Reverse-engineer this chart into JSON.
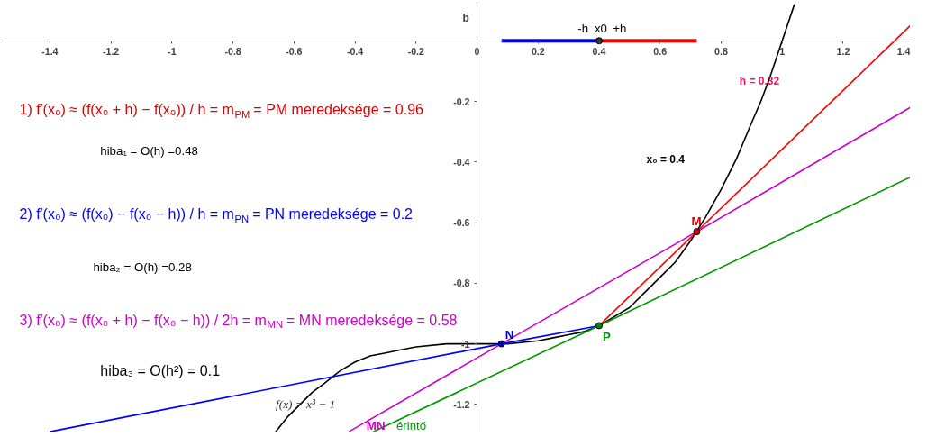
{
  "chart_data": {
    "type": "line",
    "ylabel": "b",
    "xlim": [
      -1.562,
      1.42
    ],
    "ylim": [
      -1.294,
      0.133
    ],
    "xticks": [
      -1.4,
      -1.2,
      -1,
      -0.8,
      -0.6,
      -0.4,
      -0.2,
      0,
      0.2,
      0.4,
      0.6,
      0.8,
      1,
      1.2,
      1.4
    ],
    "yticks": [
      -1.2,
      -1,
      -0.8,
      -0.6,
      -0.4,
      -0.2
    ],
    "grid": false,
    "line_style": "solid",
    "series": [
      {
        "color": "#000000",
        "x": [
          -0.66,
          -0.62,
          -0.58,
          -0.54,
          -0.5,
          -0.45,
          -0.4,
          -0.35,
          -0.3,
          -0.25,
          -0.2,
          -0.1,
          0,
          0.1,
          0.2,
          0.25,
          0.3,
          0.35,
          0.4,
          0.45,
          0.5,
          0.55,
          0.6,
          0.65,
          0.7,
          0.75,
          0.8,
          0.85,
          0.9,
          0.93,
          0.96,
          1.0,
          1.04
        ],
        "values": [
          -1.29,
          -1.24,
          -1.2,
          -1.16,
          -1.13,
          -1.09,
          -1.06,
          -1.04,
          -1.03,
          -1.02,
          -1.01,
          -1.0,
          -1,
          -1.0,
          -0.99,
          -0.98,
          -0.97,
          -0.96,
          -0.94,
          -0.91,
          -0.88,
          -0.83,
          -0.78,
          -0.73,
          -0.66,
          -0.58,
          -0.49,
          -0.39,
          -0.27,
          -0.2,
          -0.12,
          0,
          0.12
        ]
      },
      {
        "color": "#ff0000",
        "x": [
          0.4,
          0.72,
          1.42
        ],
        "values": [
          -0.94,
          -0.63,
          0.05
        ]
      },
      {
        "color": "#0000ff",
        "x": [
          -1.4,
          0.08,
          0.4
        ],
        "values": [
          -1.29,
          -1.0,
          -0.94
        ]
      },
      {
        "color": "#cc00cc",
        "x": [
          -0.42,
          0.08,
          0.72,
          1.42
        ],
        "values": [
          -1.29,
          -1.0,
          -0.63,
          -0.22
        ]
      },
      {
        "color": "#009900",
        "x": [
          -0.34,
          0.4,
          1.42
        ],
        "values": [
          -1.29,
          -0.94,
          -0.45
        ]
      },
      {
        "color": "#0000ff",
        "x": [
          0.08,
          0.4
        ],
        "values": [
          0,
          0
        ]
      },
      {
        "color": "#ff0000",
        "x": [
          0.4,
          0.72
        ],
        "values": [
          0,
          0
        ]
      },
      {
        "type": "scatter",
        "marker": "circle",
        "x": [
          0.08,
          0.4,
          0.72,
          0.4
        ],
        "values": [
          -1.0,
          -0.94,
          -0.63,
          0
        ],
        "colors": [
          "#0000aa",
          "#008800",
          "#dd0000",
          "#333333"
        ]
      }
    ],
    "annotations": [
      "1) f′(x₀) ≈ (f(x₀ + h) − f(x₀)) / h = m$_{PM}$ = PM meredeksége = 0.96",
      "hiba₁ = O(h) =0.48",
      "2) f′(x₀) ≈ (f(x₀) − f(x₀ − h)) / h = m$_{PN}$ = PN meredeksége = 0.2",
      "hiba₂ = O(h) =0.28",
      "3) f′(x₀) ≈ (f(x₀ + h) − f(x₀ − h)) / 2h = m$_{MN}$ = MN meredeksége = 0.58",
      "hiba₃ = O(h²) = 0.1",
      "h = 0.32",
      "x₀ = 0.4",
      "f(x) = x³ − 1",
      {
        "text": "N",
        "x": 0.08,
        "y": -1.0
      },
      {
        "text": "P",
        "x": 0.4,
        "y": -0.94
      },
      {
        "text": "M",
        "x": 0.72,
        "y": -0.63
      },
      {
        "text": "MN",
        "x": -0.38,
        "y": -1.27
      },
      {
        "text": "érintő",
        "x": -0.3,
        "y": -1.27
      },
      {
        "text": "-h",
        "x": 0.33,
        "y": 0
      },
      {
        "text": "x0",
        "x": 0.385,
        "y": 0
      },
      {
        "text": "+h",
        "x": 0.445,
        "y": 0
      }
    ]
  }
}
